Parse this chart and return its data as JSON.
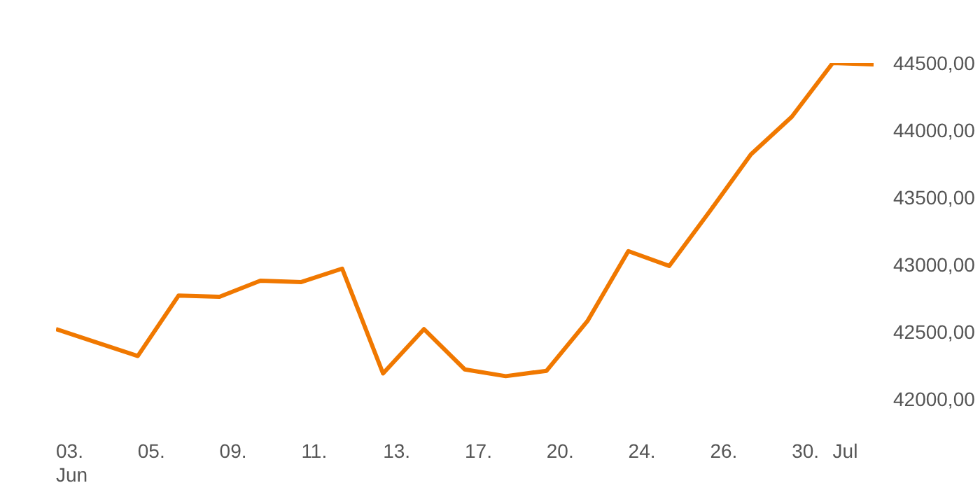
{
  "chart_data": {
    "type": "line",
    "categories": [
      "03.\nJun",
      null,
      "05.",
      null,
      "09.",
      null,
      "11.",
      null,
      "13.",
      null,
      "17.",
      null,
      "20.",
      null,
      "24.",
      null,
      "26.",
      null,
      "30.",
      "Jul",
      null
    ],
    "series": [
      {
        "color": "#f07800",
        "values": [
          42520,
          42420,
          42320,
          42770,
          42760,
          42880,
          42870,
          42970,
          42190,
          42520,
          42220,
          42170,
          42210,
          42580,
          43100,
          42990,
          43400,
          43820,
          44100,
          44500,
          44490
        ]
      }
    ],
    "ylim": [
      42000,
      44500
    ],
    "yticks": [
      {
        "value": 42000,
        "label": "42000,00"
      },
      {
        "value": 42500,
        "label": "42500,00"
      },
      {
        "value": 43000,
        "label": "43000,00"
      },
      {
        "value": 43500,
        "label": "43500,00"
      },
      {
        "value": 44000,
        "label": "44000,00"
      },
      {
        "value": 44500,
        "label": "44500,00"
      }
    ],
    "grid": false,
    "legend": false,
    "marker": "none",
    "line_style": "solid"
  }
}
